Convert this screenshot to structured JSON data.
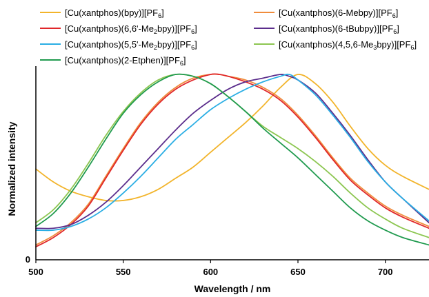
{
  "chart_data": {
    "type": "line",
    "title": "",
    "xlabel": "Wavelength / nm",
    "ylabel": "Normalized intensity",
    "xlim": [
      500,
      725
    ],
    "ylim": [
      0,
      1.02
    ],
    "x_ticks": [
      "500",
      "550",
      "600",
      "650",
      "700"
    ],
    "y_ticks": [
      "0"
    ],
    "grid": false,
    "legend_position": "top",
    "series": [
      {
        "name": "[Cu(xantphos)(bpy)][PF6]",
        "name_parts": [
          "[Cu(xantphos)(bpy)][PF",
          "6",
          "]"
        ],
        "color": "#f2b42b",
        "x": [
          500,
          510,
          520,
          530,
          540,
          550,
          560,
          570,
          580,
          590,
          600,
          610,
          620,
          630,
          640,
          650,
          660,
          670,
          680,
          690,
          700,
          710,
          725
        ],
        "y": [
          0.49,
          0.42,
          0.37,
          0.34,
          0.32,
          0.32,
          0.34,
          0.38,
          0.44,
          0.5,
          0.58,
          0.66,
          0.74,
          0.83,
          0.93,
          1.0,
          0.95,
          0.85,
          0.72,
          0.6,
          0.51,
          0.45,
          0.38
        ]
      },
      {
        "name": "[Cu(xantphos)(6-Mebpy)][PF6]",
        "name_parts": [
          "[Cu(xantphos)(6-Mebpy)][PF",
          "6",
          "]"
        ],
        "color": "#f08c3c",
        "x": [
          500,
          510,
          520,
          530,
          540,
          550,
          560,
          570,
          580,
          590,
          600,
          605,
          610,
          620,
          630,
          640,
          650,
          660,
          670,
          680,
          690,
          700,
          710,
          725
        ],
        "y": [
          0.08,
          0.13,
          0.2,
          0.3,
          0.45,
          0.6,
          0.74,
          0.85,
          0.93,
          0.98,
          1.0,
          1.0,
          0.99,
          0.97,
          0.93,
          0.87,
          0.78,
          0.67,
          0.55,
          0.44,
          0.36,
          0.29,
          0.24,
          0.18
        ]
      },
      {
        "name": "[Cu(xantphos)(6,6'-Me2bpy)][PF6]",
        "name_parts": [
          "[Cu(xantphos)(6,6'-Me",
          "2",
          "bpy)][PF",
          "6",
          "]"
        ],
        "color": "#e0262a",
        "x": [
          500,
          510,
          520,
          530,
          540,
          550,
          560,
          570,
          580,
          590,
          600,
          605,
          610,
          620,
          630,
          640,
          650,
          660,
          670,
          680,
          690,
          700,
          710,
          725
        ],
        "y": [
          0.07,
          0.12,
          0.19,
          0.29,
          0.44,
          0.59,
          0.73,
          0.84,
          0.92,
          0.97,
          1.0,
          1.0,
          0.99,
          0.96,
          0.92,
          0.86,
          0.77,
          0.66,
          0.54,
          0.43,
          0.35,
          0.28,
          0.23,
          0.17
        ]
      },
      {
        "name": "[Cu(xantphos)(6-tBubpy)][PF6]",
        "name_parts": [
          "[Cu(xantphos)(6-tBubpy)][PF",
          "6",
          "]"
        ],
        "color": "#5b2d8c",
        "x": [
          500,
          510,
          520,
          530,
          540,
          550,
          560,
          570,
          580,
          590,
          600,
          610,
          620,
          630,
          640,
          645,
          650,
          660,
          670,
          680,
          690,
          700,
          710,
          725
        ],
        "y": [
          0.17,
          0.17,
          0.19,
          0.24,
          0.31,
          0.4,
          0.5,
          0.6,
          0.7,
          0.79,
          0.86,
          0.92,
          0.96,
          0.98,
          1.0,
          0.99,
          0.97,
          0.9,
          0.79,
          0.67,
          0.54,
          0.42,
          0.33,
          0.2
        ]
      },
      {
        "name": "[Cu(xantphos)(5,5'-Me2bpy)][PF6]",
        "name_parts": [
          "[Cu(xantphos)(5,5'-Me",
          "2",
          "bpy)][PF",
          "6",
          "]"
        ],
        "color": "#2aaee4",
        "x": [
          500,
          510,
          520,
          530,
          540,
          550,
          560,
          570,
          580,
          590,
          600,
          610,
          620,
          630,
          640,
          645,
          650,
          660,
          670,
          680,
          690,
          700,
          710,
          725
        ],
        "y": [
          0.16,
          0.16,
          0.18,
          0.22,
          0.28,
          0.36,
          0.45,
          0.55,
          0.65,
          0.73,
          0.81,
          0.87,
          0.92,
          0.96,
          0.99,
          1.0,
          0.97,
          0.89,
          0.78,
          0.66,
          0.53,
          0.42,
          0.33,
          0.21
        ]
      },
      {
        "name": "[Cu(xantphos)(4,5,6-Me3bpy)][PF6]",
        "name_parts": [
          "[Cu(xantphos)(4,5,6-Me",
          "3",
          "bpy)][PF",
          "6",
          "]"
        ],
        "color": "#8cc650",
        "x": [
          500,
          510,
          520,
          530,
          540,
          550,
          560,
          570,
          580,
          590,
          600,
          610,
          620,
          630,
          640,
          650,
          660,
          670,
          680,
          690,
          700,
          710,
          725
        ],
        "y": [
          0.2,
          0.27,
          0.38,
          0.52,
          0.67,
          0.8,
          0.9,
          0.97,
          1.0,
          0.99,
          0.95,
          0.88,
          0.8,
          0.72,
          0.66,
          0.6,
          0.53,
          0.45,
          0.36,
          0.28,
          0.22,
          0.17,
          0.12
        ]
      },
      {
        "name": "[Cu(xantphos)(2-Etphen)][PF6]",
        "name_parts": [
          "[Cu(xantphos)(2-Etphen)][PF",
          "6",
          "]"
        ],
        "color": "#1f9a4e",
        "x": [
          500,
          510,
          520,
          530,
          540,
          550,
          560,
          570,
          580,
          590,
          600,
          610,
          620,
          630,
          640,
          650,
          660,
          670,
          680,
          690,
          700,
          710,
          725
        ],
        "y": [
          0.18,
          0.25,
          0.36,
          0.5,
          0.65,
          0.79,
          0.89,
          0.96,
          1.0,
          0.99,
          0.95,
          0.88,
          0.8,
          0.71,
          0.63,
          0.55,
          0.46,
          0.37,
          0.28,
          0.21,
          0.16,
          0.12,
          0.08
        ]
      }
    ]
  }
}
